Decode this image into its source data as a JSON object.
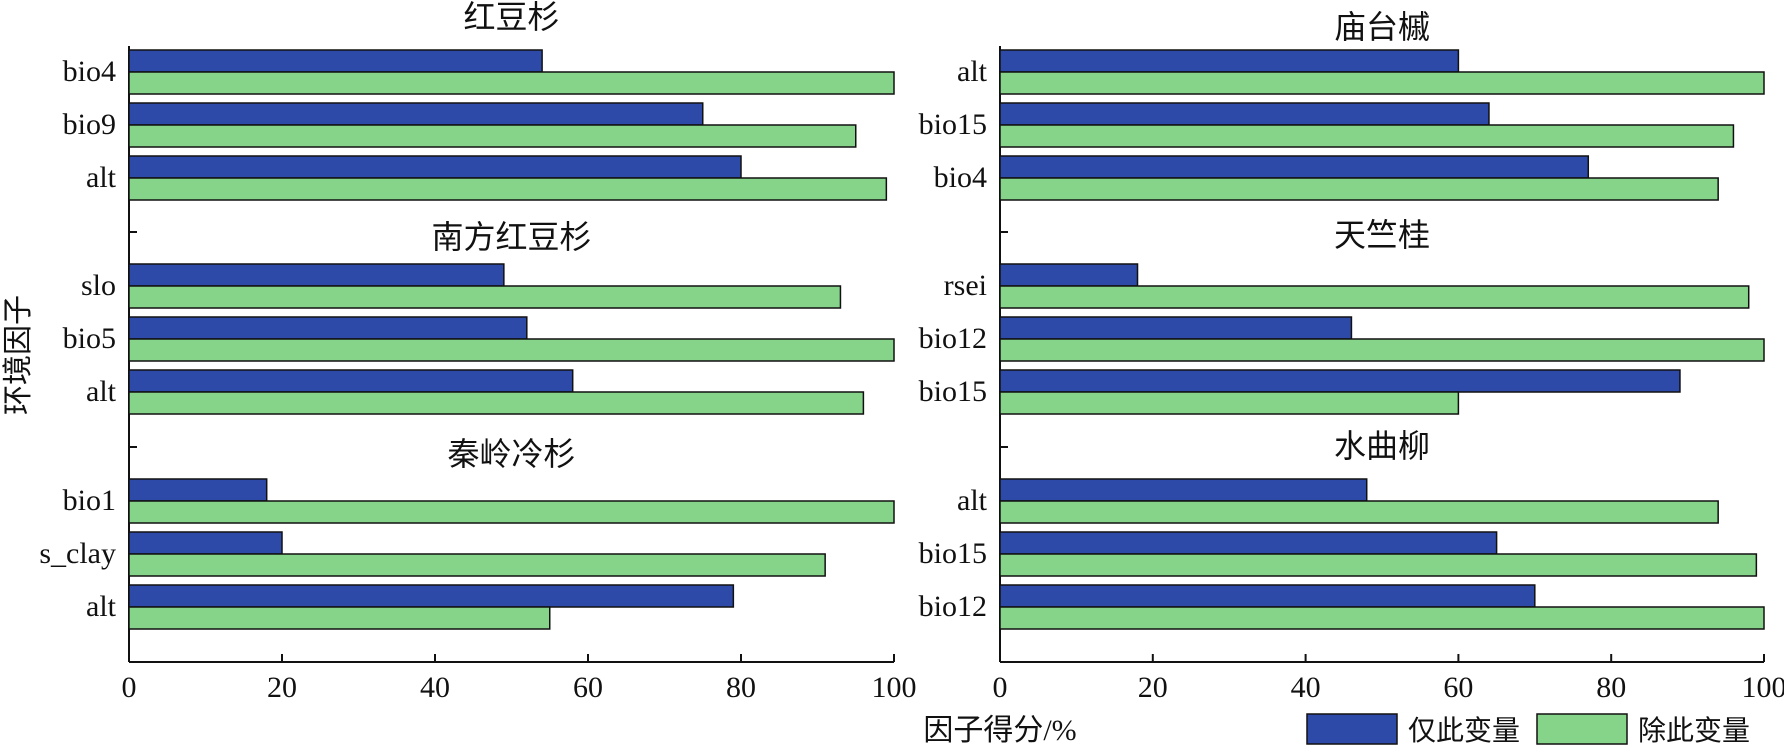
{
  "chart_data": {
    "type": "bar",
    "orientation": "horizontal",
    "ylabel": "环境因子",
    "xlabel": "因子得分/%",
    "xlim": [
      0,
      100
    ],
    "xticks": [
      0,
      20,
      40,
      60,
      80,
      100
    ],
    "xtick_labels": [
      "0",
      "20",
      "40",
      "60",
      "80",
      "100"
    ],
    "series_names": [
      "仅此变量",
      "除此变量"
    ],
    "colors": {
      "only": "#2e4aa8",
      "without": "#86d48a"
    },
    "legend": {
      "position": "bottom-right",
      "items": [
        "仅此变量",
        "除此变量"
      ]
    },
    "panels": [
      {
        "groups": [
          {
            "title": "红豆杉",
            "categories": [
              "bio4",
              "bio9",
              "alt"
            ],
            "only": [
              54,
              75,
              80
            ],
            "without": [
              100,
              95,
              99
            ]
          },
          {
            "title": "南方红豆杉",
            "categories": [
              "slo",
              "bio5",
              "alt"
            ],
            "only": [
              49,
              52,
              58
            ],
            "without": [
              93,
              100,
              96
            ]
          },
          {
            "title": "秦岭冷杉",
            "categories": [
              "bio1",
              "s_clay",
              "alt"
            ],
            "only": [
              18,
              20,
              79
            ],
            "without": [
              100,
              91,
              55
            ]
          }
        ]
      },
      {
        "groups": [
          {
            "title": "庙台槭",
            "categories": [
              "alt",
              "bio15",
              "bio4"
            ],
            "only": [
              60,
              64,
              77
            ],
            "without": [
              100,
              96,
              94
            ]
          },
          {
            "title": "天竺桂",
            "categories": [
              "rsei",
              "bio12",
              "bio15"
            ],
            "only": [
              18,
              46,
              89
            ],
            "without": [
              98,
              100,
              60
            ]
          },
          {
            "title": "水曲柳",
            "categories": [
              "alt",
              "bio15",
              "bio12"
            ],
            "only": [
              48,
              65,
              70
            ],
            "without": [
              94,
              99,
              100
            ]
          }
        ]
      }
    ]
  }
}
